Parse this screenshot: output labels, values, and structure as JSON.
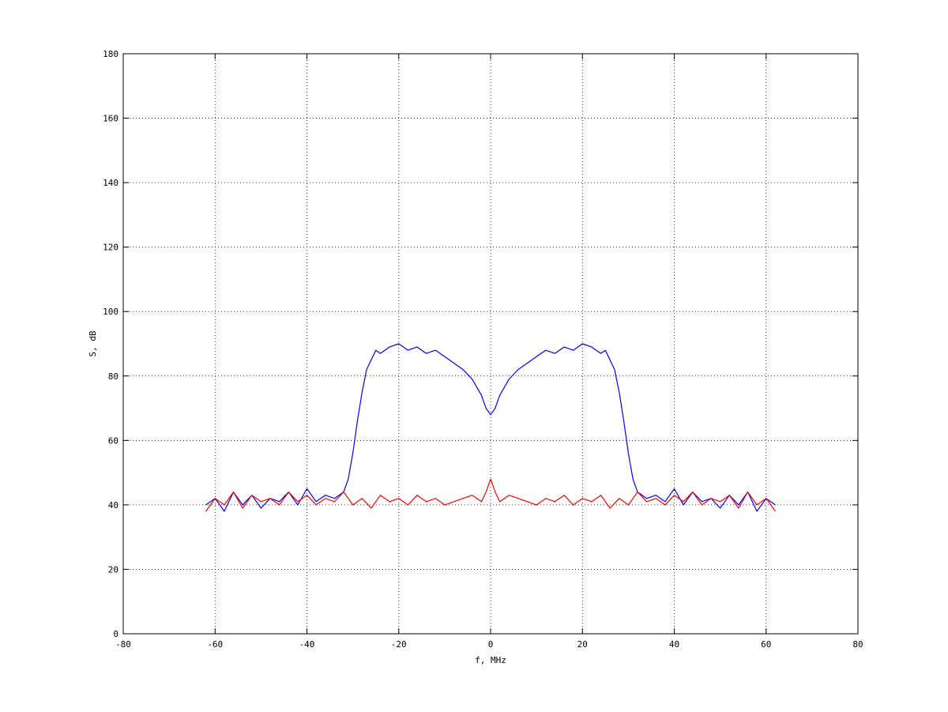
{
  "chart_data": {
    "type": "line",
    "title": "",
    "xlabel": "f, MHz",
    "ylabel": "S, dB",
    "xlim": [
      -80,
      80
    ],
    "ylim": [
      0,
      180
    ],
    "xticks": [
      -80,
      -60,
      -40,
      -20,
      0,
      20,
      40,
      60,
      80
    ],
    "yticks": [
      0,
      20,
      40,
      60,
      80,
      100,
      120,
      140,
      160,
      180
    ],
    "xtick_labels": [
      "-80",
      "-60",
      "-40",
      "-20",
      "0",
      "20",
      "40",
      "60",
      "80"
    ],
    "ytick_labels": [
      "0",
      "20",
      "40",
      "60",
      "80",
      "100",
      "120",
      "140",
      "160",
      "180"
    ],
    "grid": true,
    "legend": "none",
    "series": [
      {
        "color": "#0000ff",
        "x": [
          -62,
          -60,
          -58,
          -56,
          -54,
          -52,
          -50,
          -48,
          -46,
          -44,
          -42,
          -40,
          -38,
          -36,
          -34,
          -32,
          -31,
          -30,
          -29,
          -28,
          -27,
          -26,
          -25,
          -24,
          -22,
          -20,
          -18,
          -16,
          -14,
          -12,
          -10,
          -8,
          -6,
          -4,
          -2,
          -1,
          0,
          1,
          2,
          4,
          6,
          8,
          10,
          12,
          14,
          16,
          18,
          20,
          22,
          24,
          25,
          26,
          27,
          28,
          29,
          30,
          31,
          32,
          34,
          36,
          38,
          40,
          42,
          44,
          46,
          48,
          50,
          52,
          54,
          56,
          58,
          60,
          62
        ],
        "y": [
          40,
          42,
          38,
          44,
          40,
          43,
          39,
          42,
          41,
          44,
          40,
          45,
          41,
          43,
          42,
          44,
          48,
          56,
          66,
          75,
          82,
          85,
          88,
          87,
          89,
          90,
          88,
          89,
          87,
          88,
          86,
          84,
          82,
          79,
          74,
          70,
          68,
          70,
          74,
          79,
          82,
          84,
          86,
          88,
          87,
          89,
          88,
          90,
          89,
          87,
          88,
          85,
          82,
          75,
          66,
          56,
          48,
          44,
          42,
          43,
          41,
          45,
          40,
          44,
          41,
          42,
          39,
          43,
          40,
          44,
          38,
          42,
          40
        ]
      },
      {
        "color": "#ff0000",
        "x": [
          -62,
          -60,
          -58,
          -56,
          -54,
          -52,
          -50,
          -48,
          -46,
          -44,
          -42,
          -40,
          -38,
          -36,
          -34,
          -32,
          -30,
          -28,
          -26,
          -24,
          -22,
          -20,
          -18,
          -16,
          -14,
          -12,
          -10,
          -8,
          -6,
          -4,
          -2,
          -1,
          0,
          1,
          2,
          4,
          6,
          8,
          10,
          12,
          14,
          16,
          18,
          20,
          22,
          24,
          26,
          28,
          30,
          32,
          34,
          36,
          38,
          40,
          42,
          44,
          46,
          48,
          50,
          52,
          54,
          56,
          58,
          60,
          62
        ],
        "y": [
          38,
          42,
          40,
          44,
          39,
          43,
          41,
          42,
          40,
          44,
          41,
          43,
          40,
          42,
          41,
          44,
          40,
          42,
          39,
          43,
          41,
          42,
          40,
          43,
          41,
          42,
          40,
          41,
          42,
          43,
          41,
          44,
          48,
          44,
          41,
          43,
          42,
          41,
          40,
          42,
          41,
          43,
          40,
          42,
          41,
          43,
          39,
          42,
          40,
          44,
          41,
          42,
          40,
          43,
          41,
          44,
          40,
          42,
          41,
          43,
          39,
          44,
          40,
          42,
          38
        ]
      }
    ]
  }
}
